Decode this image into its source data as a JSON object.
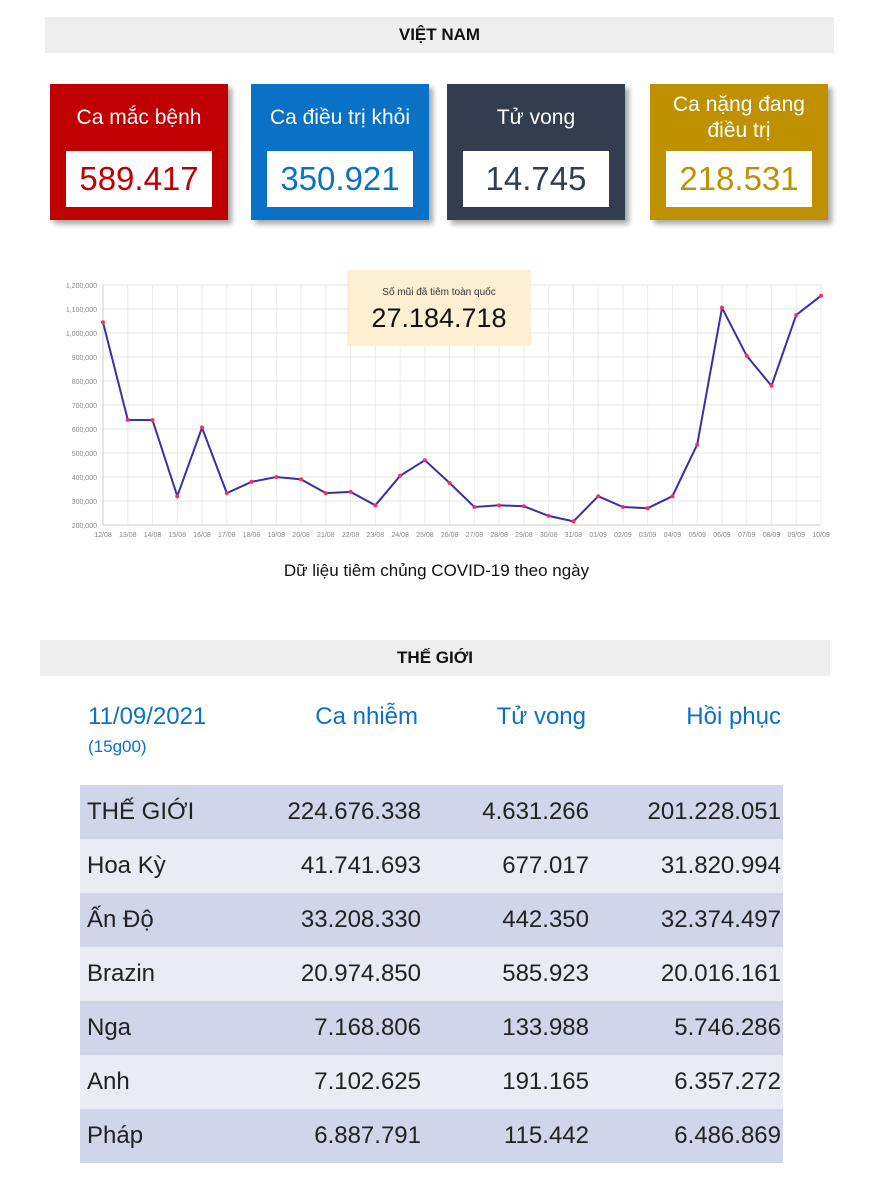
{
  "vietnam": {
    "header": "VIỆT NAM",
    "cards": {
      "cases": {
        "label": "Ca mắc bệnh",
        "value": "589.417"
      },
      "recovered": {
        "label": "Ca điều trị khỏi",
        "value": "350.921"
      },
      "deaths": {
        "label": "Tử vong",
        "value": "14.745"
      },
      "critical": {
        "label_line1": "Ca nặng đang",
        "label_line2": "điều trị",
        "value": "218.531"
      }
    },
    "vaccination": {
      "label": "Số mũi đã tiêm toàn quốc",
      "total": "27.184.718"
    },
    "chart_caption": "Dữ liệu tiêm chủng COVID-19 theo ngày"
  },
  "colors": {
    "cases": "#c00000",
    "recovered": "#0a72c6",
    "deaths": "#323e4f",
    "critical": "#bf9000",
    "line": "#3b2fa6",
    "point": "#ff2d55"
  },
  "chart_data": {
    "type": "line",
    "title": "",
    "xlabel": "",
    "ylabel": "",
    "ylim": [
      200000,
      1200000
    ],
    "yticks": [
      200000,
      300000,
      400000,
      500000,
      600000,
      700000,
      800000,
      900000,
      1000000,
      1100000,
      1200000
    ],
    "ytick_labels": [
      "200,000",
      "300,000",
      "400,000",
      "500,000",
      "600,000",
      "700,000",
      "800,000",
      "900,000",
      "1,000,000",
      "1,100,000",
      "1,200,000"
    ],
    "grid": true,
    "x": [
      "12/08",
      "13/08",
      "14/08",
      "15/08",
      "16/08",
      "17/08",
      "18/08",
      "19/08",
      "20/08",
      "21/08",
      "22/08",
      "23/08",
      "24/08",
      "25/08",
      "26/08",
      "27/08",
      "28/08",
      "29/08",
      "30/08",
      "31/08",
      "01/09",
      "02/09",
      "03/09",
      "04/09",
      "05/09",
      "06/09",
      "07/09",
      "08/09",
      "09/09",
      "10/09"
    ],
    "series": [
      {
        "values": [
          1045000,
          638000,
          637000,
          320000,
          606000,
          333000,
          380000,
          400000,
          390000,
          333000,
          338000,
          282000,
          405000,
          470000,
          375000,
          275000,
          282000,
          278000,
          238000,
          215000,
          320000,
          275000,
          270000,
          320000,
          535000,
          1105000,
          905000,
          780000,
          1075000,
          1155000
        ]
      }
    ]
  },
  "world": {
    "header": "THẾ GIỚI",
    "columns": {
      "date": "11/09/2021",
      "time": "(15g00)",
      "cases": "Ca nhiễm",
      "deaths": "Tử vong",
      "recovered": "Hồi phục"
    },
    "rows": [
      {
        "name": "THẾ GIỚI",
        "cases": "224.676.338",
        "deaths": "4.631.266",
        "recovered": "201.228.051"
      },
      {
        "name": "Hoa Kỳ",
        "cases": "41.741.693",
        "deaths": "677.017",
        "recovered": "31.820.994"
      },
      {
        "name": "Ấn Độ",
        "cases": "33.208.330",
        "deaths": "442.350",
        "recovered": "32.374.497"
      },
      {
        "name": "Brazin",
        "cases": "20.974.850",
        "deaths": "585.923",
        "recovered": "20.016.161"
      },
      {
        "name": "Nga",
        "cases": "7.168.806",
        "deaths": "133.988",
        "recovered": "5.746.286"
      },
      {
        "name": "Anh",
        "cases": "7.102.625",
        "deaths": "191.165",
        "recovered": "6.357.272"
      },
      {
        "name": "Pháp",
        "cases": "6.887.791",
        "deaths": "115.442",
        "recovered": "6.486.869"
      }
    ]
  }
}
